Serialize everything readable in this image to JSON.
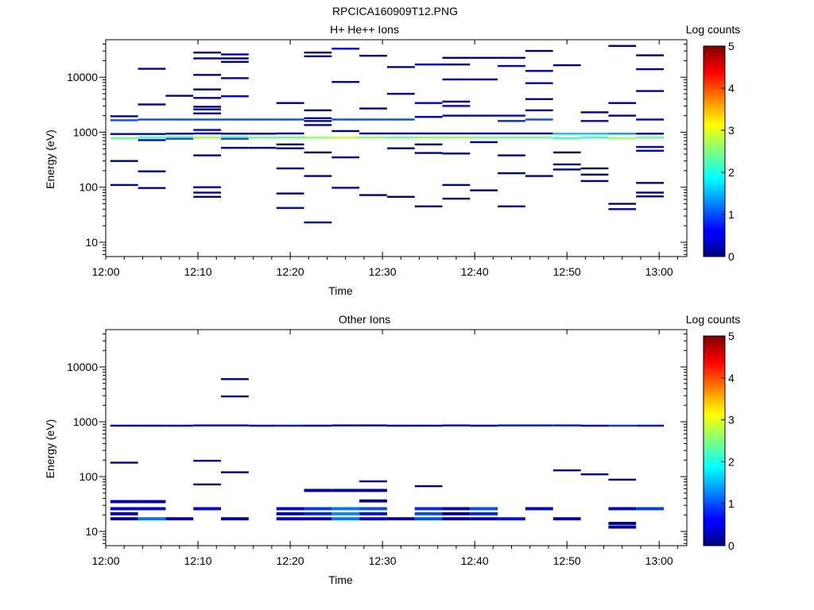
{
  "figure_title": "RPCICA160909T12.PNG",
  "chart_data": [
    {
      "type": "heatmap",
      "title": "H+ He++ Ions",
      "xlabel": "Time",
      "ylabel": "Energy (eV)",
      "x_range": [
        "12:00",
        "13:03"
      ],
      "x_ticks": [
        "12:00",
        "12:10",
        "12:20",
        "12:30",
        "12:40",
        "12:50",
        "13:00"
      ],
      "y_scale": "log",
      "y_range": [
        5.5,
        48000
      ],
      "y_ticks": [
        {
          "v": 10,
          "l": "10"
        },
        {
          "v": 100,
          "l": "100"
        },
        {
          "v": 1000,
          "l": "1000"
        },
        {
          "v": 10000,
          "l": "10000"
        }
      ],
      "colorbar": {
        "label": "Log counts",
        "min": 0,
        "max": 5,
        "ticks": [
          "0",
          "1",
          "2",
          "3",
          "4",
          "5"
        ]
      },
      "columns": [
        "12:02",
        "12:05",
        "12:08",
        "12:11",
        "12:14",
        "12:17",
        "12:20",
        "12:23",
        "12:26",
        "12:29",
        "12:32",
        "12:35",
        "12:38",
        "12:41",
        "12:44",
        "12:47",
        "12:50",
        "12:53",
        "12:56",
        "12:59",
        "13:02"
      ],
      "cells": [
        [
          0,
          110,
          0.2
        ],
        [
          0,
          300,
          0.1
        ],
        [
          0,
          780,
          2.4
        ],
        [
          0,
          930,
          0.5
        ],
        [
          0,
          1650,
          1.0
        ],
        [
          0,
          1950,
          0.3
        ],
        [
          1,
          97,
          0.3
        ],
        [
          1,
          195,
          0.2
        ],
        [
          1,
          720,
          0.5
        ],
        [
          1,
          800,
          2.2
        ],
        [
          1,
          930,
          0.5
        ],
        [
          1,
          1700,
          1.0
        ],
        [
          1,
          3200,
          0.2
        ],
        [
          1,
          14200,
          0.2
        ],
        [
          2,
          760,
          1.0
        ],
        [
          2,
          820,
          2.4
        ],
        [
          2,
          940,
          0.5
        ],
        [
          2,
          1700,
          1.0
        ],
        [
          2,
          4600,
          0.1
        ],
        [
          3,
          67,
          0.1
        ],
        [
          3,
          80,
          0.2
        ],
        [
          3,
          100,
          0.3
        ],
        [
          3,
          380,
          0.2
        ],
        [
          3,
          800,
          2.7
        ],
        [
          3,
          950,
          0.5
        ],
        [
          3,
          1100,
          0.5
        ],
        [
          3,
          1700,
          1.0
        ],
        [
          3,
          2200,
          0.2
        ],
        [
          3,
          2600,
          0.1
        ],
        [
          3,
          2900,
          0.1
        ],
        [
          3,
          4200,
          0.1
        ],
        [
          3,
          6000,
          0.1
        ],
        [
          3,
          11000,
          0.2
        ],
        [
          3,
          22000,
          0.1
        ],
        [
          3,
          28000,
          0.1
        ],
        [
          4,
          520,
          0.3
        ],
        [
          4,
          760,
          1.0
        ],
        [
          4,
          820,
          2.4
        ],
        [
          4,
          940,
          0.5
        ],
        [
          4,
          1700,
          1.0
        ],
        [
          4,
          4500,
          0.5
        ],
        [
          4,
          9600,
          0.2
        ],
        [
          4,
          19000,
          0.1
        ],
        [
          4,
          22000,
          0.1
        ],
        [
          4,
          26000,
          0.4
        ],
        [
          5,
          520,
          0.2
        ],
        [
          5,
          800,
          2.4
        ],
        [
          5,
          940,
          0.5
        ],
        [
          5,
          1700,
          1.0
        ],
        [
          6,
          42,
          0.5
        ],
        [
          6,
          77,
          0.2
        ],
        [
          6,
          220,
          0.4
        ],
        [
          6,
          510,
          0.1
        ],
        [
          6,
          600,
          0.2
        ],
        [
          6,
          800,
          2.4
        ],
        [
          6,
          950,
          0.4
        ],
        [
          6,
          1700,
          1.0
        ],
        [
          6,
          3400,
          0.1
        ],
        [
          7,
          23,
          0.5
        ],
        [
          7,
          160,
          0.2
        ],
        [
          7,
          430,
          0.1
        ],
        [
          7,
          800,
          2.6
        ],
        [
          7,
          1350,
          0.1
        ],
        [
          7,
          1600,
          0.4
        ],
        [
          7,
          1800,
          0.3
        ],
        [
          7,
          2500,
          0.1
        ],
        [
          7,
          24000,
          0.1
        ],
        [
          7,
          28000,
          0.1
        ],
        [
          8,
          98,
          0.4
        ],
        [
          8,
          350,
          0.3
        ],
        [
          8,
          800,
          2.8
        ],
        [
          8,
          1050,
          0.1
        ],
        [
          8,
          1700,
          1.0
        ],
        [
          8,
          8200,
          0.3
        ],
        [
          8,
          33000,
          0.6
        ],
        [
          9,
          72,
          0.1
        ],
        [
          9,
          800,
          2.6
        ],
        [
          9,
          950,
          0.5
        ],
        [
          9,
          1700,
          1.0
        ],
        [
          9,
          2700,
          0.2
        ],
        [
          9,
          24500,
          0.1
        ],
        [
          10,
          67,
          0.1
        ],
        [
          10,
          510,
          0.1
        ],
        [
          10,
          800,
          2.4
        ],
        [
          10,
          950,
          0.5
        ],
        [
          10,
          1700,
          1.0
        ],
        [
          10,
          5000,
          0.2
        ],
        [
          10,
          15300,
          0.2
        ],
        [
          11,
          45,
          0.3
        ],
        [
          11,
          420,
          0.2
        ],
        [
          11,
          600,
          0.2
        ],
        [
          11,
          800,
          2.6
        ],
        [
          11,
          950,
          0.5
        ],
        [
          11,
          1900,
          0.3
        ],
        [
          11,
          3400,
          0.5
        ],
        [
          11,
          17000,
          0.5
        ],
        [
          12,
          62,
          0.2
        ],
        [
          12,
          110,
          0.2
        ],
        [
          12,
          410,
          0.1
        ],
        [
          12,
          800,
          2.6
        ],
        [
          12,
          950,
          0.5
        ],
        [
          12,
          2000,
          0.4
        ],
        [
          12,
          3000,
          0.5
        ],
        [
          12,
          3600,
          0.1
        ],
        [
          12,
          9100,
          0.2
        ],
        [
          12,
          17000,
          0.2
        ],
        [
          12,
          22500,
          0.1
        ],
        [
          13,
          88,
          0.1
        ],
        [
          13,
          660,
          0.1
        ],
        [
          13,
          800,
          2.5
        ],
        [
          13,
          950,
          0.5
        ],
        [
          13,
          2000,
          0.4
        ],
        [
          13,
          9100,
          0.1
        ],
        [
          13,
          22500,
          0.1
        ],
        [
          14,
          45,
          0.3
        ],
        [
          14,
          180,
          0.1
        ],
        [
          14,
          380,
          0.2
        ],
        [
          14,
          800,
          2.4
        ],
        [
          14,
          950,
          0.5
        ],
        [
          14,
          1600,
          0.8
        ],
        [
          14,
          2000,
          0.5
        ],
        [
          14,
          16000,
          0.5
        ],
        [
          14,
          22500,
          0.1
        ],
        [
          15,
          160,
          0.1
        ],
        [
          15,
          800,
          2.4
        ],
        [
          15,
          950,
          0.5
        ],
        [
          15,
          1700,
          1.0
        ],
        [
          15,
          2500,
          0.2
        ],
        [
          15,
          4000,
          0.2
        ],
        [
          15,
          7800,
          0.5
        ],
        [
          15,
          13000,
          0.2
        ],
        [
          15,
          30000,
          0.1
        ],
        [
          16,
          210,
          0.2
        ],
        [
          16,
          260,
          0.1
        ],
        [
          16,
          430,
          0.1
        ],
        [
          16,
          780,
          2.2
        ],
        [
          16,
          940,
          1.6
        ],
        [
          16,
          16500,
          0.2
        ],
        [
          17,
          130,
          0.2
        ],
        [
          17,
          170,
          0.2
        ],
        [
          17,
          220,
          0.1
        ],
        [
          17,
          800,
          2.2
        ],
        [
          17,
          940,
          1.6
        ],
        [
          17,
          1600,
          0.5
        ],
        [
          17,
          2300,
          0.1
        ],
        [
          18,
          40,
          0.3
        ],
        [
          18,
          50,
          0.1
        ],
        [
          18,
          780,
          2.6
        ],
        [
          18,
          940,
          1.4
        ],
        [
          18,
          2000,
          0.2
        ],
        [
          18,
          3400,
          0.1
        ],
        [
          18,
          37000,
          0.2
        ],
        [
          19,
          68,
          0.1
        ],
        [
          19,
          80,
          0.1
        ],
        [
          19,
          120,
          0.1
        ],
        [
          19,
          460,
          0.5
        ],
        [
          19,
          540,
          0.3
        ],
        [
          19,
          800,
          2.4
        ],
        [
          19,
          940,
          0.6
        ],
        [
          19,
          1700,
          0.4
        ],
        [
          19,
          5600,
          0.2
        ],
        [
          19,
          14000,
          0.2
        ],
        [
          19,
          25000,
          0.1
        ]
      ]
    },
    {
      "type": "heatmap",
      "title": "Other Ions",
      "xlabel": "Time",
      "ylabel": "Energy (eV)",
      "x_range": [
        "12:00",
        "13:03"
      ],
      "x_ticks": [
        "12:00",
        "12:10",
        "12:20",
        "12:30",
        "12:40",
        "12:50",
        "13:00"
      ],
      "y_scale": "log",
      "y_range": [
        5.5,
        48000
      ],
      "y_ticks": [
        {
          "v": 10,
          "l": "10"
        },
        {
          "v": 100,
          "l": "100"
        },
        {
          "v": 1000,
          "l": "1000"
        },
        {
          "v": 10000,
          "l": "10000"
        }
      ],
      "colorbar": {
        "label": "Log counts",
        "min": 0,
        "max": 5,
        "ticks": [
          "0",
          "1",
          "2",
          "3",
          "4",
          "5"
        ]
      },
      "columns": [
        "12:02",
        "12:05",
        "12:08",
        "12:11",
        "12:14",
        "12:17",
        "12:20",
        "12:23",
        "12:26",
        "12:29",
        "12:32",
        "12:35",
        "12:38",
        "12:41",
        "12:44",
        "12:47",
        "12:50",
        "12:53",
        "12:56",
        "12:59",
        "13:02"
      ],
      "cells": [
        [
          0,
          17,
          0.2
        ],
        [
          0,
          21,
          0.4
        ],
        [
          0,
          26,
          0.5
        ],
        [
          0,
          35,
          0.2
        ],
        [
          0,
          180,
          0.1
        ],
        [
          0,
          850,
          0.4
        ],
        [
          1,
          17,
          1.2
        ],
        [
          1,
          26,
          0.5
        ],
        [
          1,
          35,
          0.2
        ],
        [
          1,
          850,
          0.5
        ],
        [
          2,
          17,
          0.3
        ],
        [
          2,
          850,
          0.6
        ],
        [
          3,
          26,
          0.6
        ],
        [
          3,
          72,
          0.2
        ],
        [
          3,
          195,
          0.3
        ],
        [
          3,
          860,
          0.5
        ],
        [
          4,
          17,
          0.3
        ],
        [
          4,
          120,
          0.1
        ],
        [
          4,
          860,
          0.5
        ],
        [
          4,
          2900,
          0.2
        ],
        [
          4,
          6000,
          0.1
        ],
        [
          5,
          850,
          0.6
        ],
        [
          6,
          17,
          0.5
        ],
        [
          6,
          21,
          0.4
        ],
        [
          6,
          26,
          0.5
        ],
        [
          6,
          850,
          0.7
        ],
        [
          7,
          17,
          0.5
        ],
        [
          7,
          21,
          0.8
        ],
        [
          7,
          26,
          0.9
        ],
        [
          7,
          56,
          0.2
        ],
        [
          7,
          850,
          0.5
        ],
        [
          8,
          17,
          1.2
        ],
        [
          8,
          21,
          1.3
        ],
        [
          8,
          26,
          1.2
        ],
        [
          8,
          56,
          0.2
        ],
        [
          8,
          860,
          0.4
        ],
        [
          9,
          17,
          0.6
        ],
        [
          9,
          21,
          0.7
        ],
        [
          9,
          26,
          1.0
        ],
        [
          9,
          36,
          0.2
        ],
        [
          9,
          56,
          0.2
        ],
        [
          9,
          82,
          0.1
        ],
        [
          9,
          860,
          0.4
        ],
        [
          10,
          17,
          0.2
        ],
        [
          10,
          850,
          0.5
        ],
        [
          11,
          17,
          1.0
        ],
        [
          11,
          21,
          1.0
        ],
        [
          11,
          26,
          0.8
        ],
        [
          11,
          67,
          0.1
        ],
        [
          11,
          850,
          0.4
        ],
        [
          12,
          17,
          0.2
        ],
        [
          12,
          21,
          0.2
        ],
        [
          12,
          26,
          0.3
        ],
        [
          12,
          860,
          0.5
        ],
        [
          13,
          17,
          0.5
        ],
        [
          13,
          21,
          0.8
        ],
        [
          13,
          26,
          1.0
        ],
        [
          13,
          850,
          0.5
        ],
        [
          14,
          17,
          0.7
        ],
        [
          14,
          860,
          0.7
        ],
        [
          15,
          26,
          0.4
        ],
        [
          15,
          860,
          0.7
        ],
        [
          16,
          17,
          0.3
        ],
        [
          16,
          130,
          0.2
        ],
        [
          16,
          860,
          0.7
        ],
        [
          17,
          110,
          0.2
        ],
        [
          17,
          850,
          0.6
        ],
        [
          18,
          12,
          0.1
        ],
        [
          18,
          14,
          0.1
        ],
        [
          18,
          26,
          0.4
        ],
        [
          18,
          88,
          0.1
        ],
        [
          18,
          850,
          0.9
        ],
        [
          19,
          26,
          0.9
        ],
        [
          19,
          850,
          0.7
        ]
      ]
    }
  ]
}
